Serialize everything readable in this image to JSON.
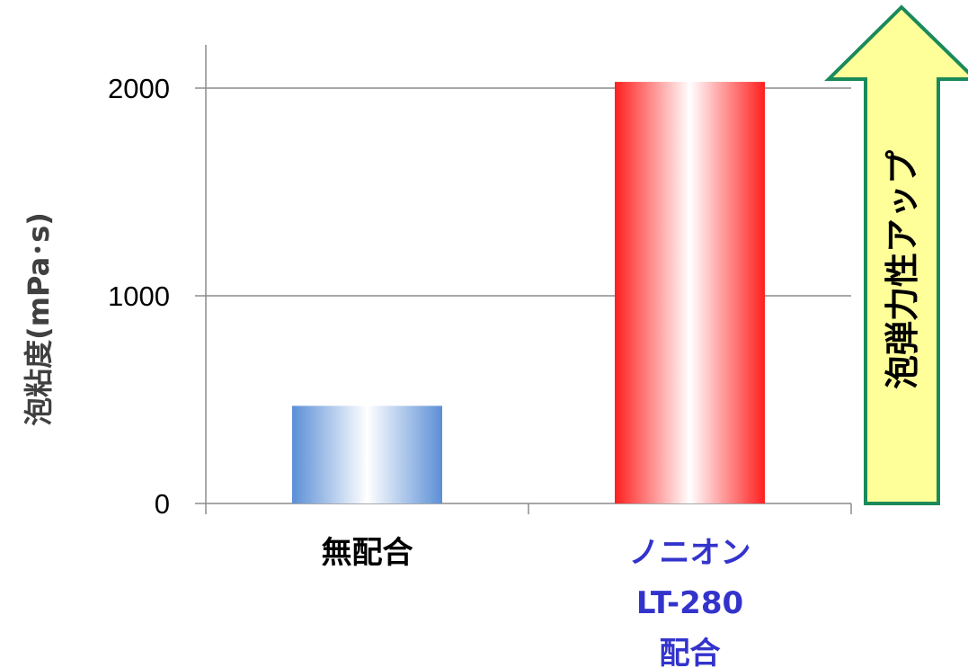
{
  "chart_data": {
    "type": "bar",
    "categories": [
      {
        "lines": [
          "無配合"
        ],
        "color": "#000000"
      },
      {
        "lines": [
          "ノニオン",
          "LT-280",
          "配合"
        ],
        "color": "#3333cc"
      }
    ],
    "values": [
      470,
      2030
    ],
    "bar_styles": [
      {
        "edge": "#5b8fd6",
        "center": "#ffffff"
      },
      {
        "edge": "#ff1f1f",
        "center": "#ffffff"
      }
    ],
    "ylabel": "泡粘度(mPa･s)",
    "yticks": [
      0,
      1000,
      2000
    ],
    "ylim": [
      0,
      2000
    ],
    "grid": true,
    "annotation": {
      "text": "泡弾力性アップ",
      "fill": "#ffff99",
      "stroke": "#1a8a5a"
    }
  }
}
